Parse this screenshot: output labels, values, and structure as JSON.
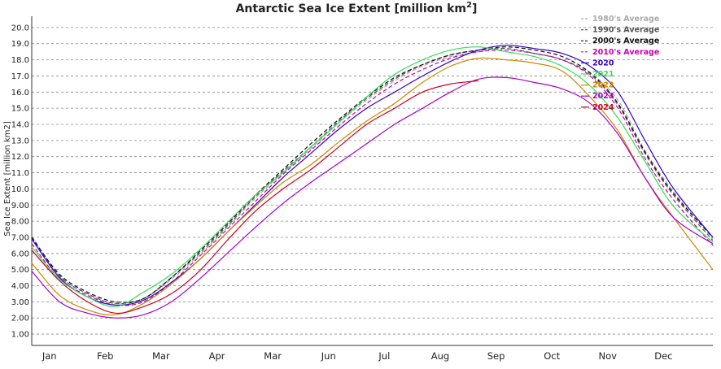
{
  "chart_data": {
    "type": "line",
    "title": "Antarctic Sea Ice Extent [million km",
    "title_sup": "2",
    "title_end": "]",
    "ylabel": "Sea Ice Extent [million km2]",
    "xlabel": "",
    "ylim": [
      0.5,
      20.7
    ],
    "xlim": [
      0,
      366
    ],
    "grid": true,
    "legend_placement": "top-right",
    "y_ticks": [
      "1.00",
      "2.00",
      "3.00",
      "4.00",
      "5.00",
      "6.00",
      "7.00",
      "8.00",
      "9.00",
      "10.0",
      "11.0",
      "12.0",
      "13.0",
      "14.0",
      "15.0",
      "16.0",
      "17.0",
      "18.0",
      "19.0",
      "20.0"
    ],
    "y_tick_values": [
      1,
      2,
      3,
      4,
      5,
      6,
      7,
      8,
      9,
      10,
      11,
      12,
      13,
      14,
      15,
      16,
      17,
      18,
      19,
      20
    ],
    "x_tick_labels": [
      "Jan",
      "Feb",
      "Mar",
      "Apr",
      "Mar",
      "Jun",
      "Jul",
      "Aug",
      "Sep",
      "Oct",
      "Nov",
      "Dec"
    ],
    "x_tick_days": [
      6,
      36,
      66,
      96,
      126,
      156,
      186,
      216,
      246,
      276,
      306,
      336
    ],
    "series": [
      {
        "name": "1980's Average",
        "color": "#aaaaaa",
        "dash": "5,3",
        "x": [
          0,
          15,
          30,
          45,
          60,
          75,
          90,
          105,
          120,
          135,
          150,
          165,
          180,
          195,
          210,
          225,
          240,
          255,
          270,
          285,
          300,
          315,
          330,
          345,
          366
        ],
        "y": [
          7.1,
          4.6,
          3.5,
          2.9,
          3.2,
          4.4,
          5.9,
          7.6,
          9.4,
          11.0,
          12.5,
          14.1,
          15.5,
          16.7,
          17.6,
          18.2,
          18.5,
          18.7,
          18.4,
          18.0,
          17.2,
          15.5,
          12.3,
          9.8,
          6.9
        ]
      },
      {
        "name": "1990's Average",
        "color": "#555555",
        "dash": "5,3",
        "x": [
          0,
          15,
          30,
          45,
          60,
          75,
          90,
          105,
          120,
          135,
          150,
          165,
          180,
          195,
          210,
          225,
          240,
          255,
          270,
          285,
          300,
          315,
          330,
          345,
          366
        ],
        "y": [
          7.0,
          4.6,
          3.5,
          2.9,
          3.2,
          4.5,
          6.0,
          7.7,
          9.5,
          11.1,
          12.6,
          14.2,
          15.6,
          16.8,
          17.7,
          18.3,
          18.6,
          18.7,
          18.4,
          18.0,
          17.1,
          15.2,
          12.1,
          9.6,
          6.8
        ]
      },
      {
        "name": "2000's Average",
        "color": "#111111",
        "dash": "5,3",
        "x": [
          0,
          15,
          30,
          45,
          60,
          75,
          90,
          105,
          120,
          135,
          150,
          165,
          180,
          195,
          210,
          225,
          240,
          255,
          270,
          285,
          300,
          315,
          330,
          345,
          366
        ],
        "y": [
          7.0,
          4.7,
          3.6,
          3.0,
          3.2,
          4.5,
          6.1,
          7.8,
          9.6,
          11.2,
          12.8,
          14.3,
          15.7,
          16.9,
          17.7,
          18.3,
          18.6,
          18.8,
          18.6,
          18.2,
          17.2,
          15.3,
          12.2,
          9.7,
          7.0
        ]
      },
      {
        "name": "2010's Average",
        "color": "#cc00aa",
        "dash": "5,3",
        "x": [
          0,
          15,
          30,
          45,
          60,
          75,
          90,
          105,
          120,
          135,
          150,
          165,
          180,
          195,
          210,
          225,
          240,
          255,
          270,
          285,
          300,
          315,
          330,
          345,
          366
        ],
        "y": [
          6.6,
          4.4,
          3.4,
          2.8,
          3.0,
          4.2,
          5.8,
          7.5,
          9.2,
          10.9,
          12.4,
          13.9,
          15.3,
          16.5,
          17.4,
          18.1,
          18.5,
          18.6,
          18.4,
          18.0,
          17.0,
          15.0,
          11.8,
          9.3,
          6.5
        ]
      },
      {
        "name": "2020",
        "color": "#3300cc",
        "x": [
          0,
          15,
          30,
          45,
          60,
          75,
          90,
          105,
          120,
          135,
          150,
          165,
          180,
          195,
          210,
          225,
          240,
          255,
          270,
          285,
          300,
          315,
          330,
          345,
          366
        ],
        "y": [
          6.9,
          4.5,
          3.3,
          2.8,
          3.1,
          4.2,
          5.6,
          7.3,
          9.0,
          10.7,
          12.2,
          13.7,
          15.0,
          16.0,
          17.0,
          17.9,
          18.6,
          18.9,
          18.7,
          18.4,
          17.6,
          16.0,
          12.9,
          10.0,
          7.0
        ]
      },
      {
        "name": "2021",
        "color": "#33dd55",
        "x": [
          0,
          15,
          30,
          45,
          60,
          75,
          90,
          105,
          120,
          135,
          150,
          165,
          180,
          195,
          210,
          225,
          240,
          255,
          270,
          285,
          300,
          315,
          330,
          345,
          366
        ],
        "y": [
          6.4,
          4.4,
          3.3,
          2.7,
          3.6,
          4.7,
          6.2,
          7.9,
          9.6,
          11.0,
          12.6,
          14.1,
          15.7,
          17.1,
          18.0,
          18.6,
          18.8,
          18.5,
          18.2,
          17.6,
          16.4,
          14.4,
          11.6,
          8.9,
          6.7
        ]
      },
      {
        "name": "2022",
        "color": "#cc8800",
        "x": [
          0,
          15,
          30,
          45,
          60,
          75,
          90,
          105,
          120,
          135,
          150,
          165,
          180,
          195,
          210,
          225,
          240,
          255,
          270,
          285,
          300,
          315,
          330,
          345,
          366
        ],
        "y": [
          5.4,
          3.4,
          2.5,
          2.2,
          2.9,
          4.1,
          5.6,
          7.3,
          8.9,
          10.4,
          11.5,
          12.9,
          14.2,
          15.3,
          16.6,
          17.6,
          18.1,
          18.0,
          17.8,
          17.3,
          15.7,
          13.6,
          10.6,
          8.2,
          5.0
        ]
      },
      {
        "name": "2023",
        "color": "#aa00cc",
        "x": [
          0,
          15,
          30,
          45,
          60,
          75,
          90,
          105,
          120,
          135,
          150,
          165,
          180,
          195,
          210,
          225,
          240,
          255,
          270,
          285,
          300,
          315,
          330,
          345,
          366
        ],
        "y": [
          4.9,
          3.0,
          2.3,
          2.0,
          2.2,
          3.0,
          4.4,
          6.0,
          7.6,
          9.1,
          10.4,
          11.6,
          12.8,
          14.0,
          15.0,
          16.0,
          16.8,
          16.9,
          16.6,
          16.2,
          15.3,
          13.4,
          10.6,
          8.2,
          6.6
        ]
      },
      {
        "name": "2024",
        "color": "#cc0022",
        "x": [
          0,
          15,
          30,
          45,
          60,
          75,
          90,
          105,
          120,
          135,
          150,
          165,
          180,
          195,
          210,
          225,
          240
        ],
        "y": [
          6.2,
          4.3,
          3.0,
          2.3,
          2.7,
          3.5,
          4.9,
          6.8,
          8.6,
          10.0,
          11.2,
          12.6,
          14.0,
          15.0,
          16.0,
          16.5,
          16.7
        ]
      }
    ]
  }
}
